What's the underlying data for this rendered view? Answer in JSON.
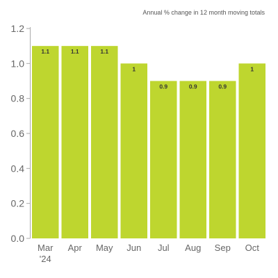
{
  "chart_data": {
    "type": "bar",
    "subtitle": "Annual % change in 12 month moving totals",
    "categories": [
      "Mar\n'24",
      "Apr",
      "May",
      "Jun",
      "Jul",
      "Aug",
      "Sep",
      "Oct"
    ],
    "values": [
      1.1,
      1.1,
      1.1,
      1.0,
      0.9,
      0.9,
      0.9,
      1.0
    ],
    "data_labels": [
      "1.1",
      "1.1",
      "1.1",
      "1",
      "0.9",
      "0.9",
      "0.9",
      "1"
    ],
    "yticks": [
      "0.0",
      "0.2",
      "0.4",
      "0.6",
      "0.8",
      "1.0",
      "1.2"
    ],
    "ylim": [
      0,
      1.2
    ],
    "xlabel": "",
    "ylabel": "",
    "grid": false,
    "bar_color": "#bed62f",
    "axis_color": "#aaaaaa"
  }
}
